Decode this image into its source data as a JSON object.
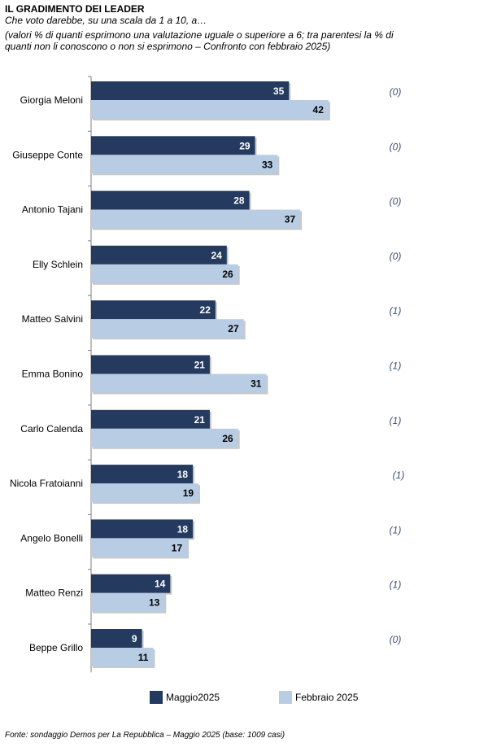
{
  "header": {
    "title": "IL GRADIMENTO DEI LEADER",
    "subtitle_1": "Che voto darebbe, su una scala da 1 a 10, a…",
    "subtitle_2": "(valori % di quanti esprimono una valutazione uguale o superiore a 6; tra parentesi la % di",
    "subtitle_3": "quanti non li conoscono o non si esprimono – Confronto con febbraio 2025)"
  },
  "colors": {
    "maggio": "#243a5e",
    "febbraio": "#b8cde4",
    "paren": "#3b4f73"
  },
  "chart_data": {
    "type": "bar",
    "orientation": "horizontal",
    "categories": [
      "Giorgia Meloni",
      "Giuseppe Conte",
      "Antonio Tajani",
      "Elly Schlein",
      "Matteo Salvini",
      "Emma Bonino",
      "Carlo Calenda",
      "Nicola Fratoianni",
      "Angelo Bonelli",
      "Matteo Renzi",
      "Beppe Grillo"
    ],
    "series": [
      {
        "name": "Maggio2025",
        "values": [
          35,
          29,
          28,
          24,
          22,
          21,
          21,
          18,
          18,
          14,
          9
        ]
      },
      {
        "name": "Febbraio 2025",
        "values": [
          42,
          33,
          37,
          26,
          27,
          31,
          26,
          19,
          17,
          13,
          11
        ]
      }
    ],
    "parenthetical": [
      "(0)",
      "(0)",
      "(0)",
      "(0)",
      "(1)",
      "(1)",
      "(1)",
      "(1)",
      "(1)",
      "(1)",
      "(0)"
    ],
    "legend_position": "bottom",
    "xlim": [
      0,
      50
    ]
  },
  "footer": "Fonte: sondaggio Demos per La Repubblica – Maggio 2025 (base: 1009 casi)"
}
